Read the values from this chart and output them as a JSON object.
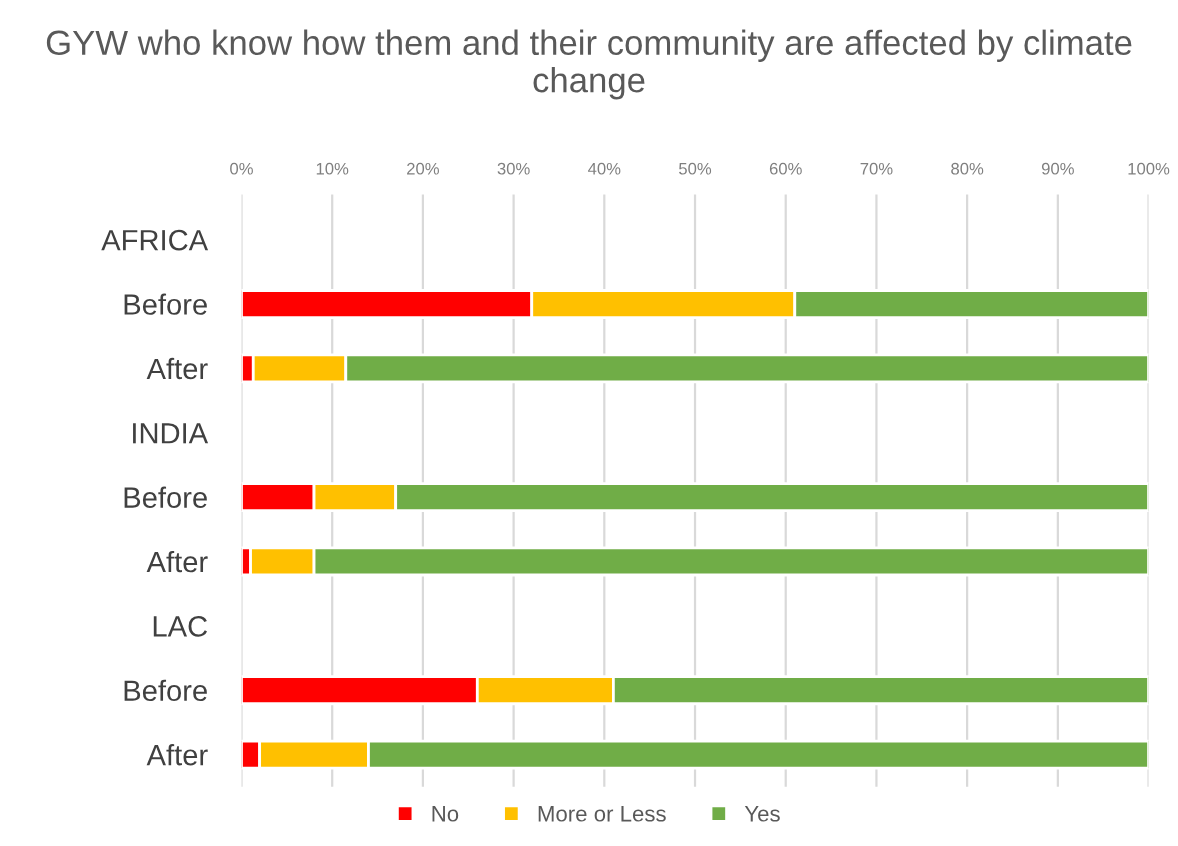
{
  "chart_data": {
    "type": "bar",
    "orientation": "horizontal",
    "stacked": true,
    "title": "GYW who know how them and their community are affected by climate change",
    "categories": [
      "AFRICA",
      "Before",
      "After",
      "INDIA",
      "Before",
      "After",
      "LAC",
      "Before",
      "After"
    ],
    "series": [
      {
        "name": "No",
        "color": "#ff0000",
        "values": [
          null,
          32,
          1.3,
          null,
          8,
          1,
          null,
          26,
          2
        ]
      },
      {
        "name": "More or Less",
        "color": "#ffc000",
        "values": [
          null,
          29,
          10.2,
          null,
          9,
          7,
          null,
          15,
          12
        ]
      },
      {
        "name": "Yes",
        "color": "#70ad47",
        "values": [
          null,
          39,
          88.5,
          null,
          83,
          92,
          null,
          59,
          86
        ]
      }
    ],
    "xlim": [
      0,
      100
    ],
    "xticks": [
      {
        "value": 0,
        "label": "0%"
      },
      {
        "value": 10,
        "label": "10%"
      },
      {
        "value": 20,
        "label": "20%"
      },
      {
        "value": 30,
        "label": "30%"
      },
      {
        "value": 40,
        "label": "40%"
      },
      {
        "value": 50,
        "label": "50%"
      },
      {
        "value": 60,
        "label": "60%"
      },
      {
        "value": 70,
        "label": "70%"
      },
      {
        "value": 80,
        "label": "80%"
      },
      {
        "value": 90,
        "label": "90%"
      },
      {
        "value": 100,
        "label": "100%"
      }
    ],
    "grid": "x",
    "legend": "bottom"
  }
}
